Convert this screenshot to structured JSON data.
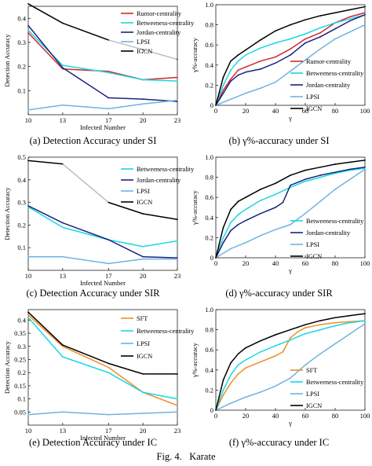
{
  "figure": {
    "label": "Fig. 4.",
    "title": "Karate"
  },
  "captions": [
    "(a) Detection Accuracy under SI",
    "(b) γ%-accuracy under SI",
    "(c) Detection Accuracy under SIR",
    "(d) γ%-accuracy under SIR",
    "(e) Detection Accuracy under IC",
    "(f) γ%-accuracy under IC"
  ],
  "chart_data": [
    {
      "type": "line",
      "xlabel": "Infected Number",
      "ylabel": "Detection Accuracy",
      "xlim": [
        10,
        23
      ],
      "ylim": [
        0,
        0.45
      ],
      "xticks": [
        10,
        13,
        17,
        20,
        23
      ],
      "yticks": [
        0.1,
        0.2,
        0.3,
        0.4
      ],
      "legend": "top-right",
      "series": [
        {
          "name": "Rumor-centrality",
          "color": "#d62728",
          "x": [
            10,
            13,
            17,
            20,
            23
          ],
          "values": [
            0.34,
            0.19,
            0.18,
            0.145,
            0.155
          ]
        },
        {
          "name": "Betweeness-centrality",
          "color": "#17d8e4",
          "x": [
            10,
            13,
            17,
            20,
            23
          ],
          "values": [
            0.35,
            0.205,
            0.175,
            0.145,
            0.14
          ]
        },
        {
          "name": "Jordan-centrality",
          "color": "#1a237e",
          "x": [
            10,
            13,
            17,
            20,
            23
          ],
          "values": [
            0.37,
            0.195,
            0.07,
            0.065,
            0.055
          ]
        },
        {
          "name": "LPSI",
          "color": "#6fb3e0",
          "x": [
            10,
            13,
            17,
            20,
            23
          ],
          "values": [
            0.02,
            0.04,
            0.025,
            0.045,
            0.06
          ]
        },
        {
          "name": "IGCN",
          "color": "#000000",
          "x": [
            10,
            13,
            17,
            20,
            23
          ],
          "values": [
            0.46,
            0.38,
            0.31,
            0.27,
            0.23
          ],
          "faded": [
            false,
            false,
            true,
            true
          ]
        }
      ]
    },
    {
      "type": "line",
      "xlabel": "γ",
      "ylabel": "γ%-accuracy",
      "xlim": [
        0,
        100
      ],
      "ylim": [
        0,
        1.0
      ],
      "xticks": [
        0,
        20,
        40,
        60,
        80,
        100
      ],
      "yticks": [
        0,
        0.2,
        0.4,
        0.6,
        0.8,
        1.0
      ],
      "legend": "bottom-right",
      "series": [
        {
          "name": "Rumor-centrality",
          "color": "#d62728",
          "x": [
            0,
            5,
            10,
            15,
            20,
            30,
            40,
            50,
            60,
            70,
            80,
            90,
            100
          ],
          "values": [
            0,
            0.15,
            0.26,
            0.35,
            0.38,
            0.44,
            0.48,
            0.56,
            0.66,
            0.72,
            0.82,
            0.88,
            0.92
          ]
        },
        {
          "name": "Betweeness-centrality",
          "color": "#17d8e4",
          "x": [
            0,
            5,
            10,
            15,
            20,
            30,
            40,
            50,
            60,
            70,
            80,
            90,
            100
          ],
          "values": [
            0,
            0.2,
            0.35,
            0.44,
            0.5,
            0.57,
            0.62,
            0.66,
            0.71,
            0.77,
            0.82,
            0.86,
            0.9
          ]
        },
        {
          "name": "Jordan-centrality",
          "color": "#1a237e",
          "x": [
            0,
            5,
            10,
            15,
            20,
            30,
            40,
            50,
            60,
            70,
            80,
            90,
            100
          ],
          "values": [
            0,
            0.12,
            0.24,
            0.3,
            0.33,
            0.36,
            0.42,
            0.5,
            0.62,
            0.68,
            0.76,
            0.84,
            0.9
          ]
        },
        {
          "name": "LPSI",
          "color": "#6fb3e0",
          "x": [
            0,
            10,
            20,
            30,
            40,
            50,
            60,
            70,
            80,
            90,
            100
          ],
          "values": [
            0,
            0.06,
            0.12,
            0.17,
            0.23,
            0.34,
            0.45,
            0.56,
            0.66,
            0.73,
            0.8
          ]
        },
        {
          "name": "IGCN",
          "color": "#000000",
          "x": [
            0,
            5,
            10,
            15,
            20,
            30,
            40,
            50,
            60,
            70,
            80,
            90,
            100
          ],
          "values": [
            0,
            0.28,
            0.44,
            0.5,
            0.55,
            0.65,
            0.74,
            0.8,
            0.85,
            0.89,
            0.92,
            0.95,
            0.98
          ]
        }
      ]
    },
    {
      "type": "line",
      "xlabel": "Infected Number",
      "ylabel": "Detection Accuracy",
      "xlim": [
        10,
        23
      ],
      "ylim": [
        0,
        0.5
      ],
      "xticks": [
        10,
        13,
        17,
        20,
        23
      ],
      "yticks": [
        0.1,
        0.2,
        0.3,
        0.4,
        0.5
      ],
      "legend": "top-right",
      "series": [
        {
          "name": "Betweeness-centrality",
          "color": "#17d8e4",
          "x": [
            10,
            13,
            17,
            20,
            23
          ],
          "values": [
            0.28,
            0.19,
            0.135,
            0.105,
            0.13
          ]
        },
        {
          "name": "Jordan-centrality",
          "color": "#1a237e",
          "x": [
            10,
            13,
            17,
            20,
            23
          ],
          "values": [
            0.285,
            0.21,
            0.135,
            0.06,
            0.055
          ]
        },
        {
          "name": "LPSI",
          "color": "#6fb3e0",
          "x": [
            10,
            13,
            17,
            20,
            23
          ],
          "values": [
            0.06,
            0.06,
            0.03,
            0.05,
            0.05
          ]
        },
        {
          "name": "IGCN",
          "color": "#000000",
          "x": [
            10,
            13,
            17,
            20,
            23
          ],
          "values": [
            0.485,
            0.47,
            0.3,
            0.25,
            0.225
          ],
          "faded": [
            false,
            true,
            false,
            false
          ]
        }
      ]
    },
    {
      "type": "line",
      "xlabel": "γ",
      "ylabel": "γ%-accuracy",
      "xlim": [
        0,
        100
      ],
      "ylim": [
        0,
        1.0
      ],
      "xticks": [
        0,
        20,
        40,
        60,
        80,
        100
      ],
      "yticks": [
        0,
        0.2,
        0.4,
        0.6,
        0.8,
        1.0
      ],
      "legend": "bottom-right",
      "series": [
        {
          "name": "Betweeness-centrality",
          "color": "#17d8e4",
          "x": [
            0,
            5,
            10,
            15,
            20,
            30,
            40,
            50,
            60,
            70,
            80,
            90,
            100
          ],
          "values": [
            0,
            0.2,
            0.35,
            0.43,
            0.48,
            0.57,
            0.63,
            0.7,
            0.76,
            0.8,
            0.84,
            0.87,
            0.89
          ]
        },
        {
          "name": "Jordan-centrality",
          "color": "#1a237e",
          "x": [
            0,
            5,
            10,
            15,
            20,
            30,
            40,
            45,
            50,
            60,
            70,
            80,
            90,
            100
          ],
          "values": [
            0,
            0.15,
            0.27,
            0.33,
            0.37,
            0.44,
            0.5,
            0.55,
            0.72,
            0.78,
            0.82,
            0.85,
            0.88,
            0.9
          ]
        },
        {
          "name": "LPSI",
          "color": "#6fb3e0",
          "x": [
            0,
            10,
            20,
            30,
            40,
            50,
            60,
            70,
            80,
            90,
            100
          ],
          "values": [
            0,
            0.09,
            0.15,
            0.22,
            0.28,
            0.33,
            0.44,
            0.56,
            0.68,
            0.78,
            0.88
          ]
        },
        {
          "name": "IGCN",
          "color": "#000000",
          "x": [
            0,
            5,
            10,
            15,
            20,
            30,
            40,
            50,
            60,
            70,
            80,
            90,
            100
          ],
          "values": [
            0,
            0.3,
            0.48,
            0.56,
            0.6,
            0.68,
            0.74,
            0.82,
            0.87,
            0.9,
            0.93,
            0.95,
            0.97
          ]
        }
      ]
    },
    {
      "type": "line",
      "xlabel": "Infected Number",
      "ylabel": "Detection Accuracy",
      "xlim": [
        10,
        23
      ],
      "ylim": [
        0,
        0.44
      ],
      "xticks": [
        10,
        13,
        17,
        20,
        23
      ],
      "yticks": [
        0.05,
        0.1,
        0.15,
        0.2,
        0.25,
        0.3,
        0.35,
        0.4
      ],
      "legend": "top-right",
      "series": [
        {
          "name": "SFT",
          "color": "#f28c28",
          "x": [
            10,
            13,
            17,
            20,
            23
          ],
          "values": [
            0.42,
            0.3,
            0.22,
            0.125,
            0.075
          ]
        },
        {
          "name": "Betweeness-centrality",
          "color": "#17d8e4",
          "x": [
            10,
            13,
            17,
            20,
            23
          ],
          "values": [
            0.41,
            0.26,
            0.2,
            0.125,
            0.1
          ]
        },
        {
          "name": "LPSI",
          "color": "#6fb3e0",
          "x": [
            10,
            13,
            17,
            20,
            23
          ],
          "values": [
            0.04,
            0.05,
            0.04,
            0.045,
            0.05
          ]
        },
        {
          "name": "IGCN",
          "color": "#000000",
          "x": [
            10,
            13,
            17,
            20,
            23
          ],
          "values": [
            0.43,
            0.305,
            0.235,
            0.195,
            0.195
          ]
        }
      ]
    },
    {
      "type": "line",
      "xlabel": "γ",
      "ylabel": "γ%-accuracy",
      "xlim": [
        0,
        100
      ],
      "ylim": [
        0,
        1.0
      ],
      "xticks": [
        0,
        20,
        40,
        60,
        80,
        100
      ],
      "yticks": [
        0,
        0.2,
        0.4,
        0.6,
        0.8,
        1.0
      ],
      "legend": "bottom-right",
      "series": [
        {
          "name": "SFT",
          "color": "#f28c28",
          "x": [
            0,
            5,
            10,
            15,
            20,
            30,
            40,
            45,
            50,
            55,
            60,
            70,
            80,
            90,
            100
          ],
          "values": [
            0,
            0.15,
            0.27,
            0.36,
            0.42,
            0.48,
            0.54,
            0.58,
            0.72,
            0.78,
            0.82,
            0.85,
            0.87,
            0.88,
            0.89
          ]
        },
        {
          "name": "Betweeness-centrality",
          "color": "#17d8e4",
          "x": [
            0,
            5,
            10,
            15,
            20,
            30,
            40,
            50,
            60,
            70,
            80,
            90,
            100
          ],
          "values": [
            0,
            0.2,
            0.35,
            0.45,
            0.5,
            0.58,
            0.64,
            0.7,
            0.76,
            0.8,
            0.84,
            0.87,
            0.89
          ]
        },
        {
          "name": "LPSI",
          "color": "#6fb3e0",
          "x": [
            0,
            10,
            20,
            30,
            40,
            50,
            60,
            70,
            80,
            90,
            100
          ],
          "values": [
            0,
            0.07,
            0.13,
            0.18,
            0.24,
            0.32,
            0.45,
            0.56,
            0.66,
            0.76,
            0.86
          ]
        },
        {
          "name": "IGCN",
          "color": "#000000",
          "x": [
            0,
            5,
            10,
            15,
            20,
            30,
            40,
            50,
            60,
            70,
            80,
            90,
            100
          ],
          "values": [
            0,
            0.3,
            0.47,
            0.56,
            0.62,
            0.69,
            0.75,
            0.8,
            0.85,
            0.89,
            0.92,
            0.94,
            0.96
          ]
        }
      ]
    }
  ]
}
